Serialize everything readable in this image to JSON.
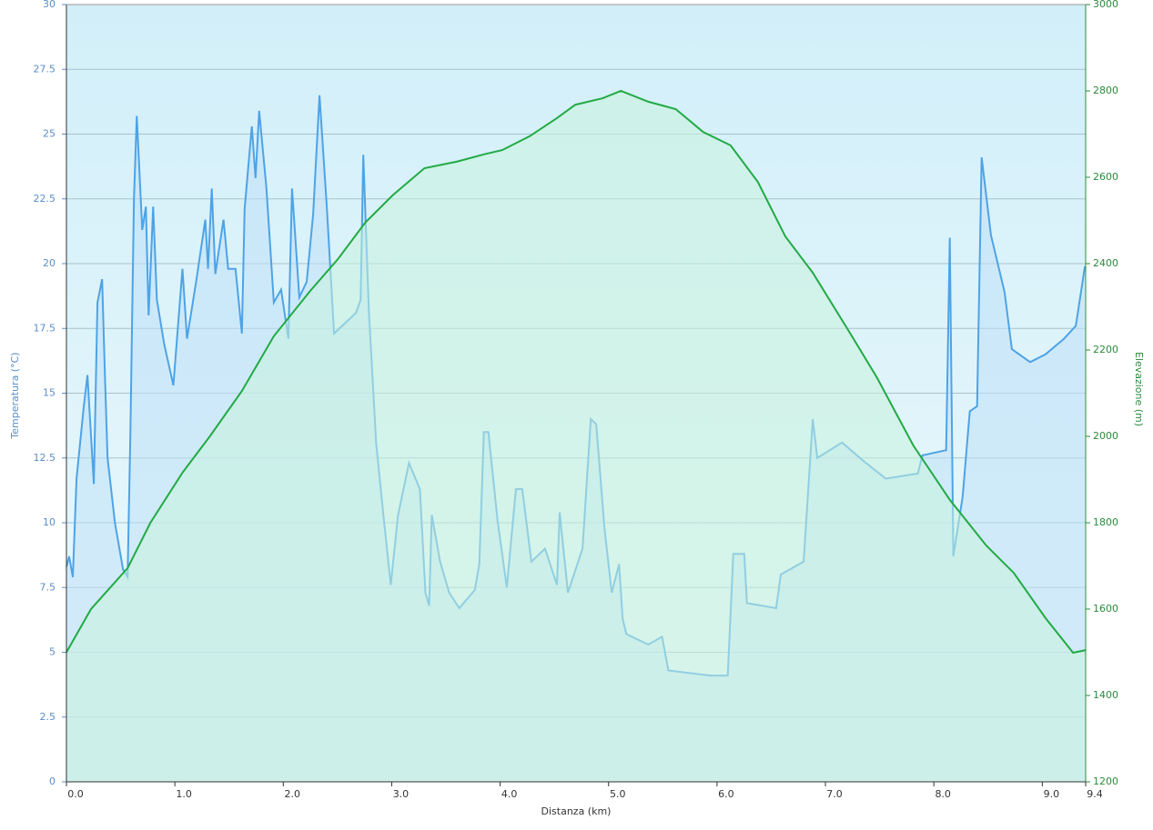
{
  "chart_data": {
    "type": "line",
    "xlabel": "Distanza  (km)",
    "ylabel": "Temperatura (°C)",
    "y2label": "Elevazione (m)",
    "xlim": [
      0,
      9.4
    ],
    "xticks": [
      {
        "value": 0,
        "label": "0.0"
      },
      {
        "value": 1,
        "label": "1.0"
      },
      {
        "value": 2,
        "label": "2.0"
      },
      {
        "value": 3,
        "label": "3.0"
      },
      {
        "value": 4,
        "label": "4.0"
      },
      {
        "value": 5,
        "label": "5.0"
      },
      {
        "value": 6,
        "label": "6.0"
      },
      {
        "value": 7,
        "label": "7.0"
      },
      {
        "value": 8,
        "label": "8.0"
      },
      {
        "value": 9,
        "label": "9.0"
      },
      9.4
    ],
    "ylim": [
      0,
      30
    ],
    "yticks": [
      0,
      2.5,
      5,
      7.5,
      10,
      12.5,
      15,
      17.5,
      20,
      22.5,
      25,
      27.5,
      30
    ],
    "y2lim": [
      1200,
      3000
    ],
    "y2ticks": [
      1200,
      1400,
      1600,
      1800,
      2000,
      2200,
      2400,
      2600,
      2800,
      3000
    ],
    "grid": true,
    "series": [
      {
        "name": "Temperatura",
        "color": "#4ea3e6",
        "fill": "#bfe0f8",
        "x": [
          0,
          0.025,
          0.059,
          0.093,
          0.16,
          0.194,
          0.253,
          0.286,
          0.329,
          0.354,
          0.379,
          0.447,
          0.522,
          0.564,
          0.59,
          0.623,
          0.649,
          0.699,
          0.733,
          0.758,
          0.8,
          0.834,
          0.901,
          0.986,
          1.07,
          1.112,
          1.196,
          1.281,
          1.306,
          1.34,
          1.373,
          1.449,
          1.491,
          1.559,
          1.618,
          1.643,
          1.71,
          1.744,
          1.778,
          1.845,
          1.913,
          1.98,
          2.047,
          2.081,
          2.148,
          2.216,
          2.275,
          2.334,
          2.401,
          2.468,
          2.544,
          2.671,
          2.713,
          2.738,
          2.789,
          2.856,
          2.923,
          2.991,
          3.058,
          3.159,
          3.26,
          3.311,
          3.345,
          3.37,
          3.446,
          3.53,
          3.623,
          3.766,
          3.808,
          3.85,
          3.892,
          3.976,
          4.061,
          4.145,
          4.204,
          4.288,
          4.414,
          4.524,
          4.549,
          4.625,
          4.76,
          4.836,
          4.886,
          4.962,
          5.029,
          5.097,
          5.13,
          5.164,
          5.366,
          5.493,
          5.552,
          5.939,
          6.099,
          6.15,
          6.251,
          6.276,
          6.546,
          6.588,
          6.799,
          6.883,
          6.925,
          7.153,
          7.346,
          7.557,
          7.852,
          7.894,
          8.113,
          8.147,
          8.18,
          8.265,
          8.332,
          8.399,
          8.441,
          8.526,
          8.652,
          8.719,
          8.888,
          9.031,
          9.2,
          9.309,
          9.393
        ],
        "values": [
          8.3,
          8.7,
          7.9,
          11.7,
          14.5,
          15.7,
          11.5,
          18.5,
          19.4,
          15.8,
          12.5,
          10,
          8.2,
          7.9,
          13.5,
          22.5,
          25.7,
          21.3,
          22.2,
          18,
          22.2,
          18.6,
          16.9,
          15.3,
          19.8,
          17.1,
          19.3,
          21.7,
          19.8,
          22.9,
          19.6,
          21.7,
          19.8,
          19.8,
          17.3,
          22.1,
          25.3,
          23.3,
          25.9,
          22.9,
          18.5,
          19,
          17.1,
          22.9,
          18.7,
          19.3,
          21.9,
          26.5,
          22.2,
          17.3,
          17.6,
          18.1,
          18.6,
          24.2,
          18.2,
          13.1,
          10.3,
          7.6,
          10.3,
          12.3,
          11.3,
          7.3,
          6.8,
          10.3,
          8.5,
          7.3,
          6.7,
          7.4,
          8.4,
          13.5,
          13.5,
          10.1,
          7.5,
          11.3,
          11.3,
          8.5,
          9,
          7.6,
          10.4,
          7.3,
          9,
          14,
          13.8,
          9.8,
          7.3,
          8.4,
          6.3,
          5.7,
          5.3,
          5.6,
          4.3,
          4.1,
          4.1,
          8.8,
          8.8,
          6.9,
          6.7,
          8,
          8.5,
          14,
          12.5,
          13.1,
          12.4,
          11.7,
          11.9,
          12.6,
          12.8,
          21,
          8.7,
          11,
          14.3,
          14.5,
          24.1,
          21.1,
          18.9,
          16.7,
          16.2,
          16.5,
          17.1,
          17.6,
          19.9
        ]
      },
      {
        "name": "Elevazione",
        "color": "#22aa44",
        "fill": "#c8f2dc",
        "axis": "y2",
        "x": [
          0,
          0.227,
          0.564,
          0.775,
          1.07,
          1.323,
          1.618,
          1.913,
          2.249,
          2.502,
          2.755,
          3.008,
          3.302,
          3.597,
          3.85,
          4.019,
          4.271,
          4.524,
          4.693,
          4.945,
          5.114,
          5.366,
          5.619,
          5.872,
          6.125,
          6.377,
          6.63,
          6.883,
          7.22,
          7.473,
          7.81,
          8.147,
          8.484,
          8.736,
          9.031,
          9.284,
          9.4
        ],
        "values": [
          1500,
          1600,
          1695,
          1800,
          1916,
          2000,
          2105,
          2232,
          2337,
          2410,
          2495,
          2558,
          2621,
          2636,
          2653,
          2663,
          2695,
          2737,
          2768,
          2783,
          2800,
          2775,
          2758,
          2705,
          2674,
          2589,
          2463,
          2379,
          2242,
          2137,
          1979,
          1853,
          1747,
          1684,
          1579,
          1499,
          1505
        ]
      }
    ]
  }
}
